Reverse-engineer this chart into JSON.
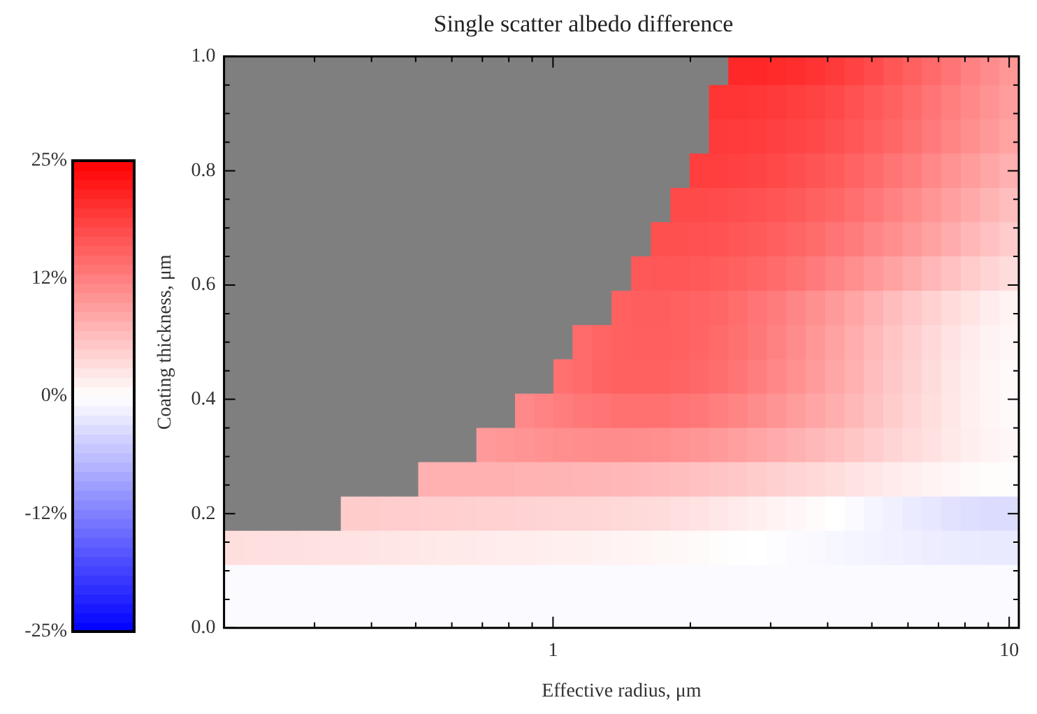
{
  "chart_data": {
    "type": "heatmap",
    "title": "Single scatter albedo difference",
    "xlabel": "Effective radius, μm",
    "ylabel": "Coating thickness, μm",
    "log": "x",
    "xlim": [
      0.19,
      10.5
    ],
    "ylim": [
      0,
      1
    ],
    "xticks": [
      {
        "value": 0.3,
        "label": null
      },
      {
        "value": 0.4,
        "label": null
      },
      {
        "value": 0.5,
        "label": null
      },
      {
        "value": 0.6,
        "label": null
      },
      {
        "value": 0.7,
        "label": null
      },
      {
        "value": 0.8,
        "label": null
      },
      {
        "value": 0.9,
        "label": null
      },
      1,
      {
        "value": 2,
        "label": null
      },
      {
        "value": 3,
        "label": null
      },
      {
        "value": 4,
        "label": null
      },
      {
        "value": 5,
        "label": null
      },
      {
        "value": 6,
        "label": null
      },
      {
        "value": 7,
        "label": null
      },
      {
        "value": 8,
        "label": null
      },
      {
        "value": 9,
        "label": null
      },
      10
    ],
    "yticks": [
      {
        "value": 0,
        "label": "0.0"
      },
      {
        "value": 0.05,
        "label": null
      },
      {
        "value": 0.1,
        "label": null
      },
      {
        "value": 0.15,
        "label": null
      },
      {
        "value": 0.2,
        "label": "0.2"
      },
      {
        "value": 0.25,
        "label": null
      },
      {
        "value": 0.3,
        "label": null
      },
      {
        "value": 0.35,
        "label": null
      },
      {
        "value": 0.4,
        "label": "0.4"
      },
      {
        "value": 0.45,
        "label": null
      },
      {
        "value": 0.5,
        "label": null
      },
      {
        "value": 0.55,
        "label": null
      },
      {
        "value": 0.6,
        "label": "0.6"
      },
      {
        "value": 0.65,
        "label": null
      },
      {
        "value": 0.7,
        "label": null
      },
      {
        "value": 0.75,
        "label": null
      },
      {
        "value": 0.8,
        "label": "0.8"
      },
      {
        "value": 0.85,
        "label": null
      },
      {
        "value": 0.9,
        "label": null
      },
      {
        "value": 0.95,
        "label": null
      },
      {
        "value": 1,
        "label": "1.0"
      }
    ],
    "clim": [
      -25,
      25
    ],
    "cticks": [
      {
        "value": 25,
        "label": "25%"
      },
      {
        "value": 12.5,
        "label": "12%"
      },
      {
        "value": 0,
        "label": "0%"
      },
      {
        "value": -12.5,
        "label": "-12%"
      },
      {
        "value": -25,
        "label": "-25%"
      }
    ],
    "x": [
      0.2,
      0.221,
      0.243,
      0.268,
      0.296,
      0.326,
      0.36,
      0.397,
      0.437,
      0.482,
      0.532,
      0.586,
      0.647,
      0.713,
      0.786,
      0.867,
      0.956,
      1.05,
      1.16,
      1.28,
      1.41,
      1.56,
      1.72,
      1.9,
      2.09,
      2.31,
      2.54,
      2.8,
      3.09,
      3.41,
      3.76,
      4.15,
      4.57,
      5.04,
      5.56,
      6.13,
      6.76,
      7.46,
      8.22,
      9.07,
      10
    ],
    "y": [
      0.98,
      0.92,
      0.86,
      0.8,
      0.74,
      0.68,
      0.62,
      0.56,
      0.5,
      0.44,
      0.38,
      0.32,
      0.26,
      0.2,
      0.14,
      0.08,
      0.02
    ],
    "cells": [
      [
        null,
        null,
        null,
        null,
        null,
        null,
        null,
        null,
        null,
        null,
        null,
        null,
        null,
        null,
        null,
        null,
        null,
        null,
        null,
        null,
        null,
        null,
        null,
        null,
        null,
        null,
        21.1,
        21.2,
        20.9,
        20.5,
        20.0,
        19.3,
        18.5,
        17.6,
        16.6,
        15.6,
        14.6,
        13.5,
        12.4,
        11.3,
        10.2
      ],
      [
        null,
        null,
        null,
        null,
        null,
        null,
        null,
        null,
        null,
        null,
        null,
        null,
        null,
        null,
        null,
        null,
        null,
        null,
        null,
        null,
        null,
        null,
        null,
        null,
        null,
        19.9,
        19.8,
        19.6,
        19.3,
        18.9,
        18.4,
        17.8,
        17.1,
        16.3,
        15.5,
        14.6,
        13.6,
        12.6,
        11.6,
        10.6,
        9.6
      ],
      [
        null,
        null,
        null,
        null,
        null,
        null,
        null,
        null,
        null,
        null,
        null,
        null,
        null,
        null,
        null,
        null,
        null,
        null,
        null,
        null,
        null,
        null,
        null,
        null,
        null,
        19.3,
        19.2,
        19.0,
        18.7,
        18.3,
        17.8,
        17.2,
        16.5,
        15.7,
        14.9,
        14.0,
        13.0,
        12.0,
        11.0,
        10.0,
        9.0
      ],
      [
        null,
        null,
        null,
        null,
        null,
        null,
        null,
        null,
        null,
        null,
        null,
        null,
        null,
        null,
        null,
        null,
        null,
        null,
        null,
        null,
        null,
        null,
        null,
        null,
        18.9,
        18.8,
        18.6,
        18.3,
        17.9,
        17.4,
        16.8,
        16.1,
        15.3,
        14.5,
        13.6,
        12.7,
        11.7,
        10.7,
        9.7,
        8.7,
        7.7
      ],
      [
        null,
        null,
        null,
        null,
        null,
        null,
        null,
        null,
        null,
        null,
        null,
        null,
        null,
        null,
        null,
        null,
        null,
        null,
        null,
        null,
        null,
        null,
        null,
        17.7,
        17.7,
        17.6,
        17.4,
        17.1,
        16.7,
        16.2,
        15.6,
        14.9,
        14.1,
        13.3,
        12.4,
        11.4,
        10.4,
        9.4,
        8.4,
        7.4,
        6.4
      ],
      [
        null,
        null,
        null,
        null,
        null,
        null,
        null,
        null,
        null,
        null,
        null,
        null,
        null,
        null,
        null,
        null,
        null,
        null,
        null,
        null,
        null,
        null,
        17.2,
        17.2,
        17.1,
        16.9,
        16.6,
        16.2,
        15.7,
        15.1,
        14.4,
        13.6,
        12.8,
        11.9,
        11.0,
        10.1,
        9.1,
        8.1,
        7.1,
        6.1,
        5.1
      ],
      [
        null,
        null,
        null,
        null,
        null,
        null,
        null,
        null,
        null,
        null,
        null,
        null,
        null,
        null,
        null,
        null,
        null,
        null,
        null,
        null,
        null,
        16.4,
        16.5,
        16.5,
        16.3,
        16.0,
        15.6,
        15.1,
        14.5,
        13.8,
        13.0,
        12.1,
        11.1,
        10.1,
        9.1,
        8.1,
        7.1,
        6.1,
        5.1,
        4.2,
        3.4
      ],
      [
        null,
        null,
        null,
        null,
        null,
        null,
        null,
        null,
        null,
        null,
        null,
        null,
        null,
        null,
        null,
        null,
        null,
        null,
        null,
        null,
        15.6,
        15.8,
        15.8,
        15.6,
        15.3,
        14.9,
        14.3,
        13.6,
        12.8,
        11.9,
        10.9,
        9.9,
        8.8,
        7.7,
        6.6,
        5.5,
        4.5,
        3.5,
        2.6,
        1.8,
        1.2
      ],
      [
        null,
        null,
        null,
        null,
        null,
        null,
        null,
        null,
        null,
        null,
        null,
        null,
        null,
        null,
        null,
        null,
        null,
        null,
        14.6,
        15.1,
        15.5,
        15.7,
        15.7,
        15.5,
        15.1,
        14.6,
        14.0,
        13.2,
        12.3,
        11.3,
        10.2,
        9.1,
        8.0,
        6.9,
        5.8,
        4.7,
        3.7,
        2.8,
        2.0,
        1.3,
        0.8
      ],
      [
        null,
        null,
        null,
        null,
        null,
        null,
        null,
        null,
        null,
        null,
        null,
        null,
        null,
        null,
        null,
        null,
        null,
        14.0,
        14.6,
        15.2,
        15.5,
        15.6,
        15.5,
        15.2,
        14.8,
        14.2,
        13.5,
        12.7,
        11.8,
        10.8,
        9.8,
        8.7,
        7.6,
        6.5,
        5.4,
        4.4,
        3.4,
        2.5,
        1.7,
        1.0,
        0.5
      ],
      [
        null,
        null,
        null,
        null,
        null,
        null,
        null,
        null,
        null,
        null,
        null,
        null,
        null,
        null,
        null,
        11.7,
        12.2,
        12.7,
        13.2,
        13.6,
        13.9,
        14.0,
        13.9,
        13.6,
        13.2,
        12.6,
        12.0,
        11.3,
        10.5,
        9.7,
        8.8,
        7.9,
        7.0,
        6.0,
        5.0,
        4.1,
        3.2,
        2.4,
        1.6,
        1.0,
        0.5
      ],
      [
        null,
        null,
        null,
        null,
        null,
        null,
        null,
        null,
        null,
        null,
        null,
        null,
        null,
        9.9,
        10.2,
        10.5,
        10.8,
        11.0,
        11.2,
        11.3,
        11.3,
        11.2,
        11.0,
        10.7,
        10.3,
        9.9,
        9.4,
        8.8,
        8.2,
        7.6,
        7.0,
        6.3,
        5.6,
        4.9,
        4.2,
        3.5,
        2.9,
        2.3,
        1.7,
        1.2,
        0.8
      ],
      [
        null,
        null,
        null,
        null,
        null,
        null,
        null,
        null,
        null,
        null,
        7.7,
        7.7,
        7.7,
        7.6,
        7.6,
        7.5,
        7.5,
        7.4,
        7.3,
        7.2,
        7.1,
        6.9,
        6.7,
        6.4,
        6.1,
        5.8,
        5.4,
        5.0,
        4.6,
        4.2,
        3.8,
        3.3,
        2.8,
        2.4,
        2.0,
        1.6,
        1.2,
        0.8,
        0.5,
        0.3,
        0.3
      ],
      [
        null,
        null,
        null,
        null,
        null,
        null,
        5.0,
        5.0,
        4.9,
        4.9,
        4.8,
        4.7,
        4.6,
        4.5,
        4.4,
        4.3,
        4.2,
        4.1,
        4.0,
        3.9,
        3.8,
        3.6,
        3.4,
        3.1,
        2.8,
        2.4,
        2.0,
        1.6,
        1.2,
        0.8,
        0.4,
        0,
        -0.5,
        -1.0,
        -1.5,
        -2.0,
        -2.4,
        -2.8,
        -3.2,
        -3.4,
        -3.4
      ],
      [
        3.2,
        3.1,
        3.0,
        3.0,
        2.9,
        2.8,
        2.7,
        2.6,
        2.5,
        2.4,
        2.3,
        2.2,
        2.1,
        2.0,
        1.9,
        1.8,
        1.7,
        1.6,
        1.5,
        1.3,
        1.2,
        1.0,
        0.9,
        0.7,
        0.5,
        0.3,
        0.1,
        0,
        -0.2,
        -0.4,
        -0.6,
        -0.8,
        -1.0,
        -1.2,
        -1.4,
        -1.6,
        -1.8,
        -1.9,
        -2.0,
        -2.1,
        -2.2
      ],
      [
        -0.5,
        -0.5,
        -0.5,
        -0.5,
        -0.5,
        -0.5,
        -0.5,
        -0.5,
        -0.5,
        -0.5,
        -0.5,
        -0.5,
        -0.5,
        -0.5,
        -0.5,
        -0.5,
        -0.5,
        -0.5,
        -0.5,
        -0.5,
        -0.5,
        -0.5,
        -0.5,
        -0.5,
        -0.5,
        -0.5,
        -0.5,
        -0.5,
        -0.5,
        -0.5,
        -0.5,
        -0.5,
        -0.5,
        -0.5,
        -0.5,
        -0.5,
        -0.5,
        -0.5,
        -0.5,
        -0.5,
        -0.5
      ],
      [
        -0.5,
        -0.5,
        -0.5,
        -0.5,
        -0.5,
        -0.5,
        -0.5,
        -0.5,
        -0.5,
        -0.5,
        -0.5,
        -0.5,
        -0.5,
        -0.5,
        -0.5,
        -0.5,
        -0.5,
        -0.5,
        -0.5,
        -0.5,
        -0.5,
        -0.5,
        -0.5,
        -0.5,
        -0.5,
        -0.5,
        -0.5,
        -0.5,
        -0.5,
        -0.5,
        -0.5,
        -0.5,
        -0.5,
        -0.5,
        -0.5,
        -0.5,
        -0.5,
        -0.5,
        -0.5,
        -0.5,
        -0.5
      ]
    ]
  }
}
